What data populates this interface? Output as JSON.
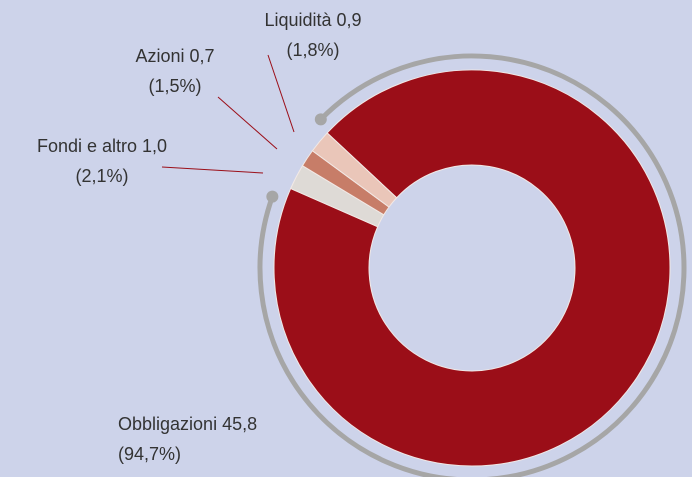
{
  "chart_data": {
    "type": "donut",
    "categories": [
      "Obbligazioni",
      "Fondi e altro",
      "Azioni",
      "Liquidità"
    ],
    "values": [
      45.8,
      1.0,
      0.7,
      0.9
    ],
    "value_labels": [
      "45,8",
      "1,0",
      "0,7",
      "0,9"
    ],
    "percent_labels": [
      "(94,7%)",
      "(2,1%)",
      "(1,5%)",
      "(1,8%)"
    ],
    "colors": [
      "#9b0e18",
      "#dedad6",
      "#c77d68",
      "#eac6b9"
    ]
  }
}
